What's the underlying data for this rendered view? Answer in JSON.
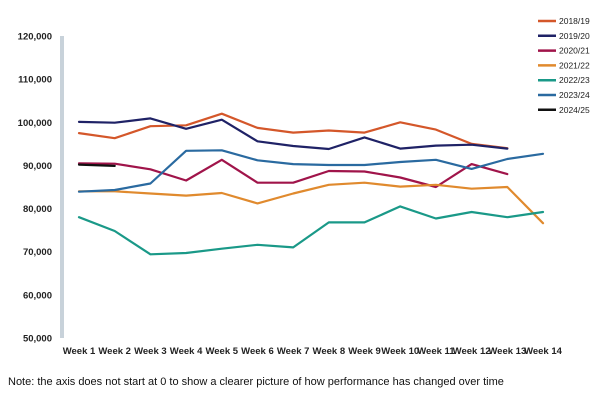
{
  "chart_data": {
    "type": "line",
    "categories": [
      "Week 1",
      "Week 2",
      "Week 3",
      "Week 4",
      "Week 5",
      "Week 6",
      "Week 7",
      "Week 8",
      "Week 9",
      "Week 10",
      "Week 11",
      "Week 12",
      "Week 13",
      "Week 14"
    ],
    "ylim": [
      50000,
      120000
    ],
    "yticks": [
      50000,
      60000,
      70000,
      80000,
      90000,
      100000,
      110000,
      120000
    ],
    "ytick_labels": [
      "50,000",
      "60,000",
      "70,000",
      "80,000",
      "90,000",
      "100,000",
      "110,000",
      "120,000"
    ],
    "legend_position": "top-right",
    "grid": false,
    "series": [
      {
        "name": "2018/19",
        "color": "#d4572a",
        "values": [
          97500,
          96300,
          99100,
          99300,
          102000,
          98700,
          97600,
          98100,
          97600,
          100000,
          98300,
          95000,
          94000,
          null
        ]
      },
      {
        "name": "2019/20",
        "color": "#1f2266",
        "values": [
          100100,
          99900,
          100900,
          98500,
          100600,
          95600,
          94500,
          93800,
          96500,
          93900,
          94600,
          94800,
          93900,
          null
        ]
      },
      {
        "name": "2020/21",
        "color": "#a0144a",
        "values": [
          90500,
          90400,
          89100,
          86500,
          91300,
          86000,
          86000,
          88700,
          88600,
          87200,
          85000,
          90300,
          88000,
          null
        ]
      },
      {
        "name": "2021/22",
        "color": "#e08a2e",
        "values": [
          84000,
          84000,
          83500,
          83000,
          83600,
          81200,
          83500,
          85500,
          86000,
          85100,
          85500,
          84600,
          85000,
          76600
        ]
      },
      {
        "name": "2022/23",
        "color": "#1a9988",
        "values": [
          78000,
          74800,
          69400,
          69700,
          70700,
          71600,
          71000,
          76800,
          76800,
          80500,
          77700,
          79200,
          78000,
          79200
        ]
      },
      {
        "name": "2023/24",
        "color": "#2a6aa0",
        "values": [
          83900,
          84300,
          85800,
          93400,
          93500,
          91200,
          90300,
          90100,
          90100,
          90800,
          91300,
          89200,
          91500,
          92700
        ]
      },
      {
        "name": "2024/25",
        "color": "#111111",
        "values": [
          90200,
          89900,
          null,
          null,
          null,
          null,
          null,
          null,
          null,
          null,
          null,
          null,
          null,
          null
        ]
      }
    ]
  },
  "note": "Note: the axis does not start at 0 to show a clearer picture of how performance has changed over time"
}
